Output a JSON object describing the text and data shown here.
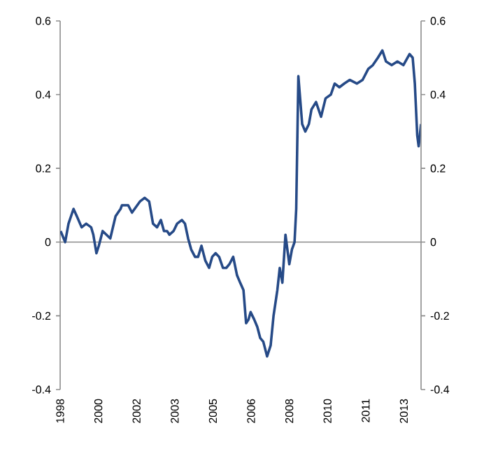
{
  "chart_data": {
    "type": "line",
    "xlim": [
      1998.4,
      2013.52
    ],
    "xticks": [
      {
        "value": 1998.4,
        "label": "1998"
      },
      {
        "value": 2000.0,
        "label": "2000"
      },
      {
        "value": 2001.6,
        "label": "2002"
      },
      {
        "value": 2003.2,
        "label": "2003"
      },
      {
        "value": 2004.8,
        "label": "2005"
      },
      {
        "value": 2006.4,
        "label": "2006"
      },
      {
        "value": 2008.0,
        "label": "2008"
      },
      {
        "value": 2009.6,
        "label": "2010"
      },
      {
        "value": 2011.2,
        "label": "2011"
      },
      {
        "value": 2012.8,
        "label": "2013"
      }
    ],
    "ylim": [
      -0.4,
      0.6
    ],
    "yticks": [
      0.6,
      0.4,
      0.2,
      0,
      -0.2,
      -0.4
    ],
    "y2lim": [
      -0.4,
      0.6
    ],
    "y2ticks": [
      0.6,
      0.4,
      0.2,
      0,
      -0.2,
      -0.4
    ],
    "ref_lines": [
      {
        "axis": "y",
        "value": 0,
        "color": "#8c8c8c"
      }
    ],
    "series": [
      {
        "color": "#264a87",
        "x": [
          1998.42,
          1998.61,
          1998.75,
          1998.96,
          1999.1,
          1999.3,
          1999.49,
          1999.7,
          1999.79,
          1999.92,
          2000.02,
          2000.18,
          2000.34,
          2000.5,
          2000.72,
          2000.93,
          2000.99,
          2001.25,
          2001.41,
          2001.74,
          2001.94,
          2002.13,
          2002.29,
          2002.46,
          2002.62,
          2002.75,
          2002.88,
          2002.98,
          2003.15,
          2003.3,
          2003.5,
          2003.63,
          2003.76,
          2003.89,
          2004.05,
          2004.18,
          2004.32,
          2004.48,
          2004.64,
          2004.77,
          2004.91,
          2005.06,
          2005.22,
          2005.36,
          2005.49,
          2005.65,
          2005.81,
          2005.94,
          2006.08,
          2006.19,
          2006.29,
          2006.38,
          2006.53,
          2006.66,
          2006.78,
          2006.91,
          2007.07,
          2007.22,
          2007.34,
          2007.5,
          2007.6,
          2007.71,
          2007.84,
          2008.0,
          2008.11,
          2008.22,
          2008.29,
          2008.38,
          2008.54,
          2008.67,
          2008.82,
          2008.93,
          2009.12,
          2009.33,
          2009.52,
          2009.74,
          2009.9,
          2010.1,
          2010.3,
          2010.53,
          2010.83,
          2011.07,
          2011.31,
          2011.5,
          2011.71,
          2011.9,
          2012.05,
          2012.29,
          2012.53,
          2012.78,
          2013.04,
          2013.17,
          2013.26,
          2013.36,
          2013.42,
          2013.52
        ],
        "values": [
          0.03,
          0.0,
          0.05,
          0.09,
          0.07,
          0.04,
          0.05,
          0.04,
          0.02,
          -0.03,
          -0.01,
          0.03,
          0.02,
          0.01,
          0.07,
          0.09,
          0.1,
          0.1,
          0.08,
          0.11,
          0.12,
          0.11,
          0.05,
          0.04,
          0.06,
          0.03,
          0.03,
          0.02,
          0.03,
          0.05,
          0.06,
          0.05,
          0.01,
          -0.02,
          -0.04,
          -0.04,
          -0.01,
          -0.05,
          -0.07,
          -0.04,
          -0.03,
          -0.04,
          -0.07,
          -0.07,
          -0.06,
          -0.04,
          -0.09,
          -0.11,
          -0.13,
          -0.22,
          -0.21,
          -0.19,
          -0.21,
          -0.23,
          -0.26,
          -0.27,
          -0.31,
          -0.28,
          -0.2,
          -0.13,
          -0.07,
          -0.11,
          0.02,
          -0.06,
          -0.02,
          0.0,
          0.09,
          0.45,
          0.32,
          0.3,
          0.32,
          0.36,
          0.38,
          0.34,
          0.39,
          0.4,
          0.43,
          0.42,
          0.43,
          0.44,
          0.43,
          0.44,
          0.47,
          0.48,
          0.5,
          0.52,
          0.49,
          0.48,
          0.49,
          0.48,
          0.51,
          0.5,
          0.43,
          0.29,
          0.26,
          0.32
        ]
      }
    ]
  }
}
